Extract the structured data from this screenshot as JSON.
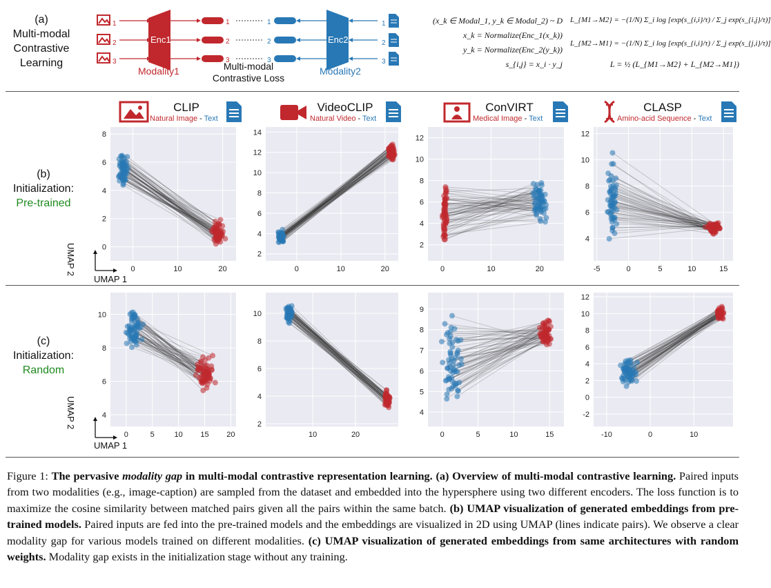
{
  "overview": {
    "label": "(a)",
    "title_lines": [
      "Multi-modal",
      "Contrastive",
      "Learning"
    ],
    "enc1": "Enc1",
    "enc2": "Enc2",
    "modality1": "Modality1",
    "modality2": "Modality2",
    "loss_lines": [
      "Multi-modal",
      "Contrastive Loss"
    ],
    "indices": [
      "1",
      "2",
      "3"
    ],
    "colors": {
      "red": "#c0282d",
      "blue": "#2878b5"
    },
    "equations_left": [
      "(x_k ∈ Modal_1, y_k ∈ Modal_2) ~ D",
      "x_k = Normalize(Enc_1(x_k))",
      "y_k = Normalize(Enc_2(y_k))",
      "s_{i,j} = x_i · y_j"
    ],
    "equations_right": [
      "L_{M1→M2} = −(1/N) Σ_i log [exp(s_{i,i}/τ) / Σ_j exp(s_{i,j}/τ)]",
      "L_{M2→M1} = −(1/N) Σ_i log [exp(s_{i,i}/τ) / Σ_j exp(s_{j,i}/τ)]",
      "L = ½ (L_{M1→M2} + L_{M2→M1})"
    ]
  },
  "rows": [
    {
      "label": "(b)",
      "line2": "Initialization:",
      "line3": "Pre-trained"
    },
    {
      "label": "(c)",
      "line2": "Initialization:",
      "line3": "Random"
    }
  ],
  "panels": [
    {
      "title": "CLIP",
      "mod1": "Natural Image",
      "sep": " - ",
      "mod2": "Text",
      "icon": "image-icon"
    },
    {
      "title": "VideoCLIP",
      "mod1": "Natural Video",
      "sep": " - ",
      "mod2": "Text",
      "icon": "video-camera-icon"
    },
    {
      "title": "ConVIRT",
      "mod1": "Medical Image",
      "sep": " - ",
      "mod2": "Text",
      "icon": "medical-image-icon"
    },
    {
      "title": "CLASP",
      "mod1": "Amino-acid Sequence",
      "sep": " - ",
      "mod2": "Text",
      "icon": "dna-icon"
    }
  ],
  "axes": {
    "x": "UMAP 1",
    "y": "UMAP 2"
  },
  "chart_data": [
    {
      "type": "scatter",
      "title": "CLIP (Pre-trained)",
      "xlabel": "UMAP 1",
      "ylabel": "UMAP 2",
      "xticks": [
        0,
        10,
        20
      ],
      "yticks": [
        0,
        2,
        4,
        6,
        8
      ],
      "xlim": [
        -5,
        23
      ],
      "ylim": [
        -1,
        8.5
      ],
      "series": [
        {
          "name": "Natural Image",
          "color": "#c0282d",
          "cluster_center": [
            19,
            1
          ],
          "spread": [
            2,
            1.1
          ]
        },
        {
          "name": "Text",
          "color": "#2878b5",
          "cluster_center": [
            -2,
            5.5
          ],
          "spread": [
            1.5,
            1.4
          ]
        }
      ],
      "lines": "pairs connected"
    },
    {
      "type": "scatter",
      "title": "VideoCLIP (Pre-trained)",
      "xlabel": "UMAP 1",
      "ylabel": "UMAP 2",
      "xticks": [
        0,
        10,
        20
      ],
      "yticks": [
        2,
        4,
        6,
        8,
        10,
        12,
        14
      ],
      "xlim": [
        -7,
        23
      ],
      "ylim": [
        1.3,
        14.5
      ],
      "series": [
        {
          "name": "Natural Video",
          "color": "#c0282d",
          "cluster_center": [
            21.5,
            12
          ],
          "spread": [
            0.9,
            1.0
          ]
        },
        {
          "name": "Text",
          "color": "#2878b5",
          "cluster_center": [
            -3.5,
            3.7
          ],
          "spread": [
            0.8,
            0.9
          ]
        }
      ],
      "lines": "pairs connected"
    },
    {
      "type": "scatter",
      "title": "ConVIRT (Pre-trained)",
      "xlabel": "UMAP 1",
      "ylabel": "UMAP 2",
      "xticks": [
        0,
        10,
        20
      ],
      "yticks": [
        2,
        4,
        6,
        8,
        10,
        12
      ],
      "xlim": [
        -3,
        25
      ],
      "ylim": [
        0.5,
        13
      ],
      "series": [
        {
          "name": "Medical Image",
          "color": "#c0282d",
          "cluster_center": [
            0.5,
            5
          ],
          "spread": [
            0.6,
            4
          ]
        },
        {
          "name": "Text",
          "color": "#2878b5",
          "cluster_center": [
            20,
            6
          ],
          "spread": [
            2,
            3
          ]
        }
      ],
      "lines": "pairs connected"
    },
    {
      "type": "scatter",
      "title": "CLASP (Pre-trained)",
      "xlabel": "UMAP 1",
      "ylabel": "UMAP 2",
      "xticks": [
        -5,
        0,
        5,
        10,
        15
      ],
      "yticks": [
        4,
        6,
        8,
        10,
        12
      ],
      "xlim": [
        -5.5,
        16.5
      ],
      "ylim": [
        2.3,
        12.5
      ],
      "series": [
        {
          "name": "Amino-acid Sequence",
          "color": "#c0282d",
          "cluster_center": [
            13.5,
            4.8
          ],
          "spread": [
            1.5,
            0.6
          ]
        },
        {
          "name": "Text",
          "color": "#2878b5",
          "cluster_center": [
            -2.5,
            7
          ],
          "spread": [
            1,
            4
          ]
        }
      ],
      "lines": "pairs connected"
    },
    {
      "type": "scatter",
      "title": "CLIP (Random)",
      "xlabel": "UMAP 1",
      "ylabel": "UMAP 2",
      "xticks": [
        0,
        5,
        10,
        15,
        20
      ],
      "yticks": [
        4,
        6,
        8,
        10
      ],
      "xlim": [
        -3,
        21
      ],
      "ylim": [
        3.3,
        11.3
      ],
      "series": [
        {
          "name": "Natural Image",
          "color": "#c0282d",
          "cluster_center": [
            15,
            6.5
          ],
          "spread": [
            2.5,
            1.4
          ]
        },
        {
          "name": "Text",
          "color": "#2878b5",
          "cluster_center": [
            1.5,
            9
          ],
          "spread": [
            1.8,
            1.5
          ]
        }
      ],
      "lines": "pairs connected"
    },
    {
      "type": "scatter",
      "title": "VideoCLIP (Random)",
      "xlabel": "UMAP 1",
      "ylabel": "UMAP 2",
      "xticks": [
        10,
        20
      ],
      "yticks": [
        2,
        4,
        6,
        8,
        10
      ],
      "xlim": [
        -1,
        30
      ],
      "ylim": [
        1.8,
        11.5
      ],
      "series": [
        {
          "name": "Natural Video",
          "color": "#c0282d",
          "cluster_center": [
            27.5,
            3.8
          ],
          "spread": [
            0.8,
            1
          ]
        },
        {
          "name": "Text",
          "color": "#2878b5",
          "cluster_center": [
            4.5,
            10
          ],
          "spread": [
            1,
            0.9
          ]
        }
      ],
      "lines": "pairs connected"
    },
    {
      "type": "scatter",
      "title": "ConVIRT (Random)",
      "xlabel": "UMAP 1",
      "ylabel": "UMAP 2",
      "xticks": [
        0,
        5,
        10,
        15
      ],
      "yticks": [
        4,
        5,
        6,
        7,
        8,
        9
      ],
      "xlim": [
        -2,
        17
      ],
      "ylim": [
        3.3,
        9.8
      ],
      "series": [
        {
          "name": "Medical Image",
          "color": "#c0282d",
          "cluster_center": [
            14.5,
            7.8
          ],
          "spread": [
            1.2,
            0.8
          ]
        },
        {
          "name": "Text",
          "color": "#2878b5",
          "cluster_center": [
            1.5,
            6.5
          ],
          "spread": [
            2,
            2.5
          ]
        }
      ],
      "lines": "pairs connected"
    },
    {
      "type": "scatter",
      "title": "CLASP (Random)",
      "xlabel": "UMAP 1",
      "ylabel": "UMAP 2",
      "xticks": [
        -10,
        0,
        10
      ],
      "yticks": [
        -2,
        0,
        2,
        4,
        6,
        8,
        10,
        12
      ],
      "xlim": [
        -13,
        19
      ],
      "ylim": [
        -3.5,
        12.5
      ],
      "series": [
        {
          "name": "Amino-acid Sequence",
          "color": "#c0282d",
          "cluster_center": [
            16,
            10
          ],
          "spread": [
            1,
            1
          ]
        },
        {
          "name": "Text",
          "color": "#2878b5",
          "cluster_center": [
            -5,
            3
          ],
          "spread": [
            2.5,
            2.5
          ]
        }
      ],
      "lines": "pairs connected"
    }
  ],
  "caption": {
    "fig": "Figure 1: ",
    "b1": "The pervasive ",
    "b1i": "modality gap",
    "b2": " in multi-modal contrastive representation learning. (a) Overview of multi-modal contrastive learning.",
    "t1": " Paired inputs from two modalities (e.g., image-caption) are sampled from the dataset and embedded into the hypersphere using two different encoders. The loss function is to maximize the cosine similarity between matched pairs given all the pairs within the same batch. ",
    "b3": "(b) UMAP visualization of generated embeddings from pre-trained models.",
    "t2": " Paired inputs are fed into the pre-trained models and the embeddings are visualized in 2D using UMAP (lines indicate pairs). We observe a clear modality gap for various models trained on different modalities. ",
    "b4": "(c) UMAP visualization of generated embeddings from same architectures with random weights.",
    "t3": " Modality gap exists in the initialization stage without any training."
  }
}
